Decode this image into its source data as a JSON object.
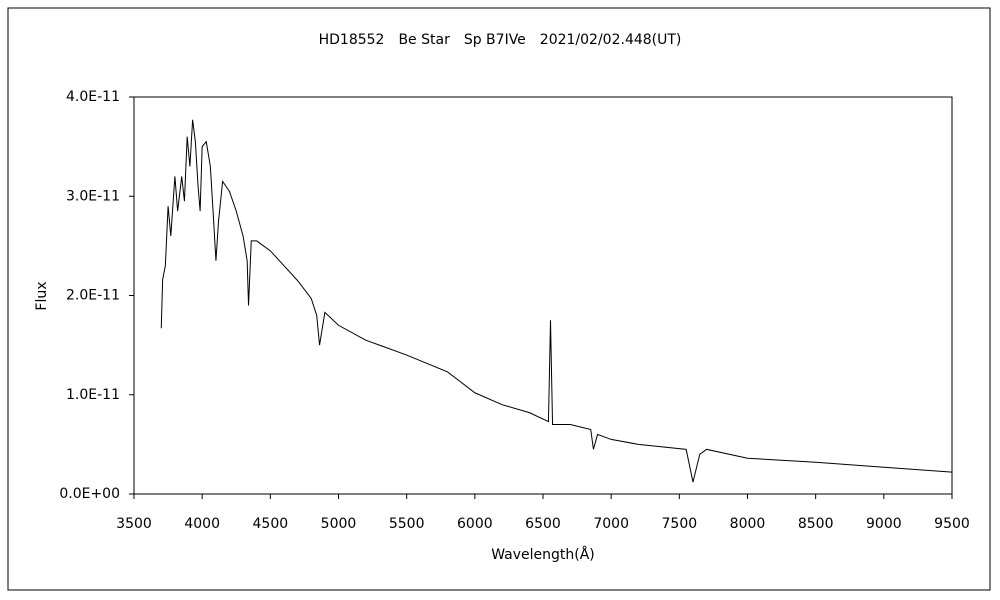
{
  "chart_data": {
    "type": "line",
    "title": "HD18552　Be Star　Sp B7IVe　2021/02/02.448(UT)",
    "x_label": "Wavelength(Å)",
    "y_label": "Flux",
    "color": "#000000",
    "x": [
      3700,
      3710,
      3730,
      3750,
      3770,
      3800,
      3820,
      3850,
      3870,
      3890,
      3910,
      3930,
      3950,
      3970,
      3985,
      4000,
      4030,
      4060,
      4080,
      4101,
      4120,
      4150,
      4200,
      4250,
      4300,
      4330,
      4340,
      4360,
      4400,
      4500,
      4600,
      4700,
      4800,
      4840,
      4861,
      4900,
      5000,
      5200,
      5500,
      5800,
      6000,
      6200,
      6400,
      6540,
      6555,
      6570,
      6700,
      6850,
      6870,
      6900,
      7000,
      7200,
      7550,
      7600,
      7650,
      7700,
      8000,
      8500,
      9000,
      9500
    ],
    "values": [
      1.67e-11,
      2.16e-11,
      2.3e-11,
      2.9e-11,
      2.6e-11,
      3.2e-11,
      2.85e-11,
      3.2e-11,
      2.95e-11,
      3.6e-11,
      3.3e-11,
      3.77e-11,
      3.55e-11,
      3.1e-11,
      2.85e-11,
      3.5e-11,
      3.55e-11,
      3.3e-11,
      2.85e-11,
      2.35e-11,
      2.75e-11,
      3.15e-11,
      3.05e-11,
      2.85e-11,
      2.6e-11,
      2.35e-11,
      1.9e-11,
      2.55e-11,
      2.55e-11,
      2.45e-11,
      2.3e-11,
      2.15e-11,
      1.97e-11,
      1.8e-11,
      1.5e-11,
      1.83e-11,
      1.7e-11,
      1.55e-11,
      1.4e-11,
      1.23e-11,
      1.02e-11,
      9e-12,
      8.2e-12,
      7.3e-12,
      1.75e-11,
      7e-12,
      7e-12,
      6.5e-12,
      4.5e-12,
      6e-12,
      5.5e-12,
      5e-12,
      4.5e-12,
      1.2e-12,
      4e-12,
      4.5e-12,
      3.6e-12,
      3.2e-12,
      2.7e-12,
      2.2e-12
    ],
    "xlim": [
      3500,
      9500
    ],
    "xticks": [
      3500,
      4000,
      4500,
      5000,
      5500,
      6000,
      6500,
      7000,
      7500,
      8000,
      8500,
      9000,
      9500
    ],
    "ylim": [
      0,
      4e-11
    ],
    "yticks": [
      {
        "value": 0,
        "label": "0.0E+00"
      },
      {
        "value": 1e-11,
        "label": "1.0E-11"
      },
      {
        "value": 2e-11,
        "label": "2.0E-11"
      },
      {
        "value": 3e-11,
        "label": "3.0E-11"
      },
      {
        "value": 4e-11,
        "label": "4.0E-11"
      }
    ],
    "grid": false
  }
}
